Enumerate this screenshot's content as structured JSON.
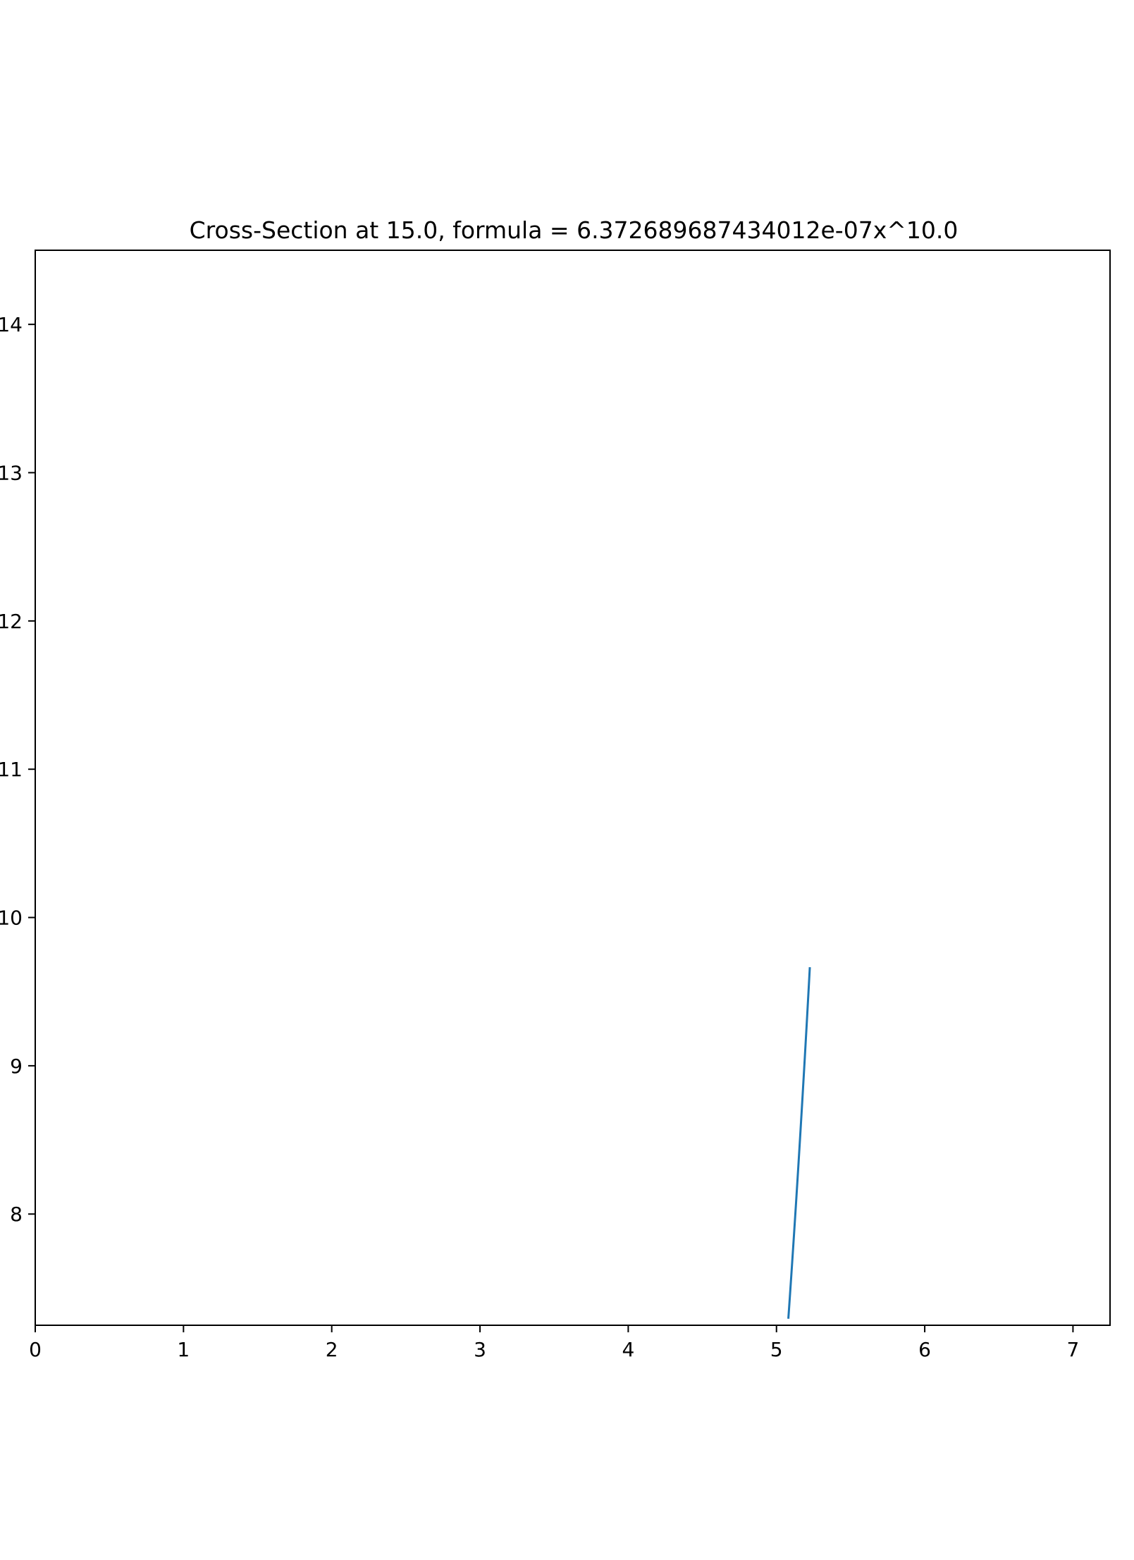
{
  "chart_data": {
    "type": "line",
    "title": "Cross-Section at 15.0, formula = 6.372689687434012e-07x^10.0",
    "xlabel": "",
    "ylabel": "",
    "xlim": [
      0,
      7.25
    ],
    "ylim": [
      7.25,
      14.5
    ],
    "x_ticks": [
      0,
      1,
      2,
      3,
      4,
      5,
      6,
      7
    ],
    "x_tick_labels": [
      "0",
      "1",
      "2",
      "3",
      "4",
      "5",
      "6",
      "7"
    ],
    "y_ticks": [
      8,
      9,
      10,
      11,
      12,
      13,
      14
    ],
    "y_tick_labels": [
      "8",
      "9",
      "10",
      "11",
      "12",
      "13",
      "14"
    ],
    "grid": false,
    "legend": "none",
    "series": [
      {
        "coefficient": 6.372689687434012e-07,
        "exponent": 10.0,
        "x_range": [
          5.08,
          5.225
        ],
        "color": "#1f77b4"
      }
    ]
  }
}
